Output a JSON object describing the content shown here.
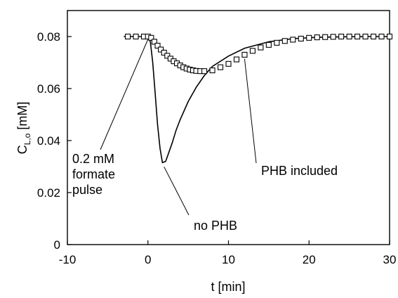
{
  "chart_data": {
    "type": "line",
    "xlabel": "t [min]",
    "ylabel": {
      "main": "C",
      "sub": "L,o",
      "unit": " [mM]"
    },
    "xlim": [
      -10,
      30
    ],
    "ylim": [
      0,
      0.09
    ],
    "xticks": [
      "-10",
      "0",
      "10",
      "20",
      "30"
    ],
    "yticks": [
      "0",
      "0.02",
      "0.04",
      "0.06",
      "0.08"
    ],
    "xtick_values": [
      -10,
      0,
      10,
      20,
      30
    ],
    "ytick_values": [
      0,
      0.02,
      0.04,
      0.06,
      0.08
    ],
    "grid": false,
    "series": [
      {
        "style": "line",
        "x": [
          -3,
          0,
          0.3,
          0.6,
          0.9,
          1.2,
          1.5,
          1.8,
          2.2,
          2.6,
          3,
          3.5,
          4,
          5,
          6,
          7,
          8,
          10,
          12,
          15,
          18,
          21,
          24,
          27,
          30
        ],
        "y": [
          0.08,
          0.08,
          0.078,
          0.07,
          0.058,
          0.046,
          0.037,
          0.0315,
          0.032,
          0.0355,
          0.039,
          0.044,
          0.048,
          0.055,
          0.0605,
          0.065,
          0.0685,
          0.0725,
          0.0755,
          0.078,
          0.0792,
          0.0797,
          0.0799,
          0.08,
          0.08
        ]
      },
      {
        "style": "markers",
        "marker": "square",
        "x": [
          -2.5,
          -1.5,
          -0.5,
          0,
          0.4,
          0.8,
          1.2,
          1.6,
          2.0,
          2.4,
          2.8,
          3.2,
          3.6,
          4.0,
          4.4,
          4.8,
          5.2,
          5.6,
          6.0,
          6.5,
          7.0,
          8,
          9,
          10,
          11,
          12,
          13,
          14,
          15,
          16,
          17,
          18,
          19,
          20,
          21,
          22,
          23,
          24,
          25,
          26,
          27,
          28,
          29,
          30
        ],
        "y": [
          0.08,
          0.08,
          0.08,
          0.08,
          0.0795,
          0.078,
          0.0765,
          0.075,
          0.0738,
          0.0726,
          0.0715,
          0.0705,
          0.0697,
          0.0689,
          0.0682,
          0.0677,
          0.0673,
          0.067,
          0.0668,
          0.0667,
          0.0667,
          0.067,
          0.0682,
          0.0695,
          0.0712,
          0.073,
          0.0745,
          0.0758,
          0.0768,
          0.0776,
          0.0783,
          0.0788,
          0.0792,
          0.0795,
          0.0797,
          0.0798,
          0.0799,
          0.08,
          0.08,
          0.08,
          0.08,
          0.08,
          0.08,
          0.08
        ]
      }
    ],
    "annotations": [
      {
        "lines": [
          "0.2 mM",
          "formate",
          "pulse"
        ],
        "point": [
          0,
          0.08
        ]
      },
      {
        "lines": [
          "PHB included"
        ],
        "point": [
          12,
          0.0725
        ]
      },
      {
        "lines": [
          "no PHB"
        ],
        "point": [
          2,
          0.031
        ]
      }
    ]
  }
}
